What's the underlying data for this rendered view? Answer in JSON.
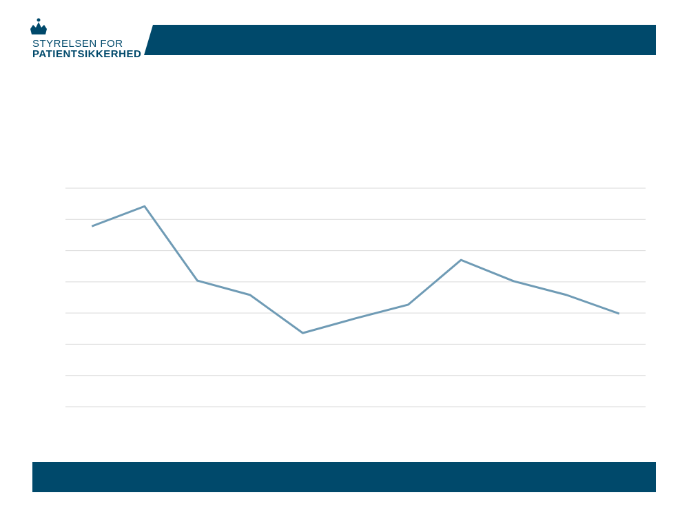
{
  "header": {
    "line1": "STYRELSEN FOR",
    "line2": "PATIENTSIKKERHED"
  },
  "chart_data": {
    "type": "line",
    "categories": [
      null,
      null,
      null,
      null,
      null,
      null,
      null,
      null,
      null,
      null,
      null
    ],
    "series": [
      {
        "color": "#6f9bb5",
        "values": [
          5.78,
          6.42,
          4.04,
          3.58,
          2.36,
          2.83,
          3.27,
          4.7,
          4.02,
          3.58,
          2.98
        ]
      }
    ],
    "ylim": [
      0,
      7
    ],
    "yticks": [
      0,
      1,
      2,
      3,
      4,
      5,
      6,
      7
    ],
    "grid": true,
    "tick_labels": false
  }
}
